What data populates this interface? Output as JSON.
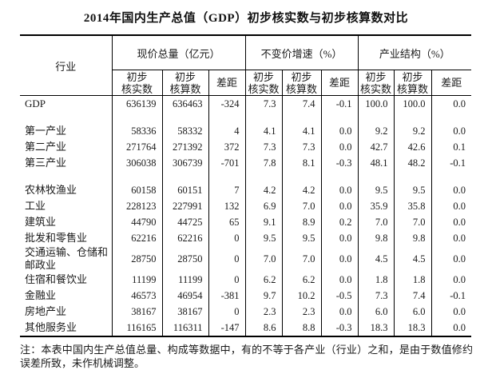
{
  "title": "2014年国内生产总值（GDP）初步核实数与初步核算数对比",
  "table": {
    "industry_header": "行业",
    "groups": [
      {
        "label": "现价总量（亿元）"
      },
      {
        "label": "不变价增速（%）"
      },
      {
        "label": "产业结构（%）"
      }
    ],
    "subcols": [
      "初步\n核实数",
      "初步\n核算数",
      "差距"
    ],
    "rows": [
      {
        "name": "GDP",
        "values": [
          "636139",
          "636463",
          "-324",
          "7.3",
          "7.4",
          "-0.1",
          "100.0",
          "100.0",
          "0.0"
        ]
      },
      {
        "name": "",
        "values": [
          "",
          "",
          "",
          "",
          "",
          "",
          "",
          "",
          ""
        ]
      },
      {
        "name": "第一产业",
        "values": [
          "58336",
          "58332",
          "4",
          "4.1",
          "4.1",
          "0.0",
          "9.2",
          "9.2",
          "0.0"
        ]
      },
      {
        "name": "第二产业",
        "values": [
          "271764",
          "271392",
          "372",
          "7.3",
          "7.3",
          "0.0",
          "42.7",
          "42.6",
          "0.1"
        ]
      },
      {
        "name": "第三产业",
        "values": [
          "306038",
          "306739",
          "-701",
          "7.8",
          "8.1",
          "-0.3",
          "48.1",
          "48.2",
          "-0.1"
        ]
      },
      {
        "name": "",
        "values": [
          "",
          "",
          "",
          "",
          "",
          "",
          "",
          "",
          ""
        ]
      },
      {
        "name": "农林牧渔业",
        "values": [
          "60158",
          "60151",
          "7",
          "4.2",
          "4.2",
          "0.0",
          "9.5",
          "9.5",
          "0.0"
        ]
      },
      {
        "name": "工业",
        "values": [
          "228123",
          "227991",
          "132",
          "6.9",
          "7.0",
          "0.0",
          "35.9",
          "35.8",
          "0.0"
        ]
      },
      {
        "name": "建筑业",
        "values": [
          "44790",
          "44725",
          "65",
          "9.1",
          "8.9",
          "0.2",
          "7.0",
          "7.0",
          "0.0"
        ]
      },
      {
        "name": "批发和零售业",
        "values": [
          "62216",
          "62216",
          "0",
          "9.5",
          "9.5",
          "0.0",
          "9.8",
          "9.8",
          "0.0"
        ]
      },
      {
        "name": "交通运输、仓储和邮政业",
        "values": [
          "28750",
          "28750",
          "0",
          "7.0",
          "7.0",
          "0.0",
          "4.5",
          "4.5",
          "0.0"
        ]
      },
      {
        "name": "住宿和餐饮业",
        "values": [
          "11199",
          "11199",
          "0",
          "6.2",
          "6.2",
          "0.0",
          "1.8",
          "1.8",
          "0.0"
        ]
      },
      {
        "name": "金融业",
        "values": [
          "46573",
          "46954",
          "-381",
          "9.7",
          "10.2",
          "-0.5",
          "7.3",
          "7.4",
          "-0.1"
        ]
      },
      {
        "name": "房地产业",
        "values": [
          "38167",
          "38167",
          "0",
          "2.3",
          "2.3",
          "0.0",
          "6.0",
          "6.0",
          "0.0"
        ]
      },
      {
        "name": "其他服务业",
        "values": [
          "116165",
          "116311",
          "-147",
          "8.6",
          "8.8",
          "-0.3",
          "18.3",
          "18.3",
          "0.0"
        ]
      }
    ]
  },
  "note": "注：本表中国内生产总值总量、构成等数据中，有的不等于各产业（行业）之和，是由于数值修约误差所致，未作机械调整。"
}
